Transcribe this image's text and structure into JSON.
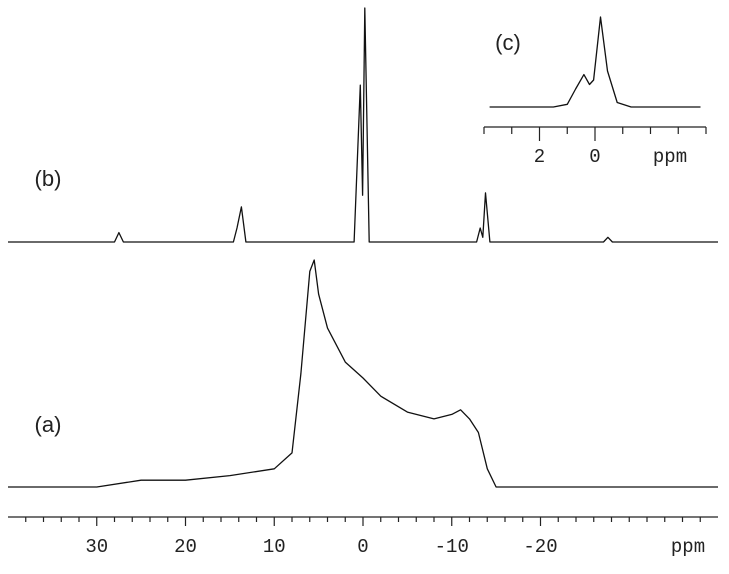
{
  "chart_data": [
    {
      "type": "line",
      "xlabel": "ppm",
      "xlim": [
        40,
        -40
      ],
      "xticks": [
        30,
        20,
        10,
        0,
        -10,
        -20
      ],
      "xminorticks": [
        38,
        36,
        34,
        32,
        28,
        26,
        24,
        22,
        18,
        16,
        14,
        12,
        8,
        6,
        4,
        2,
        -2,
        -4,
        -6,
        -8,
        -12,
        -14,
        -16,
        -18,
        -22,
        -24,
        -26,
        -28,
        -30,
        -32,
        -34,
        -36,
        -38
      ],
      "series": [
        {
          "name": "(a)",
          "color": "#111111",
          "x": [
            40,
            30,
            25,
            20,
            15,
            10,
            8,
            7,
            6,
            5.5,
            5,
            4,
            2,
            0,
            -2,
            -5,
            -8,
            -10,
            -11,
            -12,
            -13,
            -14,
            -15,
            -20,
            -30,
            -40
          ],
          "values": [
            0,
            0,
            3,
            3,
            5,
            8,
            15,
            50,
            95,
            100,
            85,
            70,
            55,
            48,
            40,
            33,
            30,
            32,
            34,
            30,
            24,
            8,
            0,
            0,
            0,
            0
          ]
        },
        {
          "name": "(b)",
          "color": "#111111",
          "x": [
            40,
            28,
            27.5,
            27,
            14.6,
            14.2,
            13.7,
            13.2,
            1,
            0.3,
            0.05,
            -0.2,
            -0.7,
            -12.8,
            -13.2,
            -13.5,
            -13.8,
            -14.3,
            -27.1,
            -27.6,
            -28.1,
            -40
          ],
          "values": [
            0,
            0,
            4,
            0,
            0,
            6,
            15,
            0,
            0,
            67,
            20,
            100,
            0,
            0,
            6,
            2,
            21,
            0,
            0,
            2,
            0,
            0
          ]
        }
      ]
    },
    {
      "type": "line",
      "label": "(c)",
      "xlabel": "ppm",
      "xlim": [
        4,
        -4
      ],
      "xticks": [
        2,
        0
      ],
      "xminorticks": [
        4,
        3,
        1,
        -1,
        -2,
        -3,
        -4
      ],
      "series": [
        {
          "name": "(c)",
          "color": "#111111",
          "x": [
            3.8,
            1.5,
            1,
            0.7,
            0.4,
            0.2,
            0.05,
            -0.2,
            -0.45,
            -0.8,
            -1.3,
            -3.8
          ],
          "values": [
            0,
            0,
            3,
            20,
            36,
            25,
            30,
            100,
            40,
            5,
            0,
            0
          ]
        }
      ]
    }
  ]
}
